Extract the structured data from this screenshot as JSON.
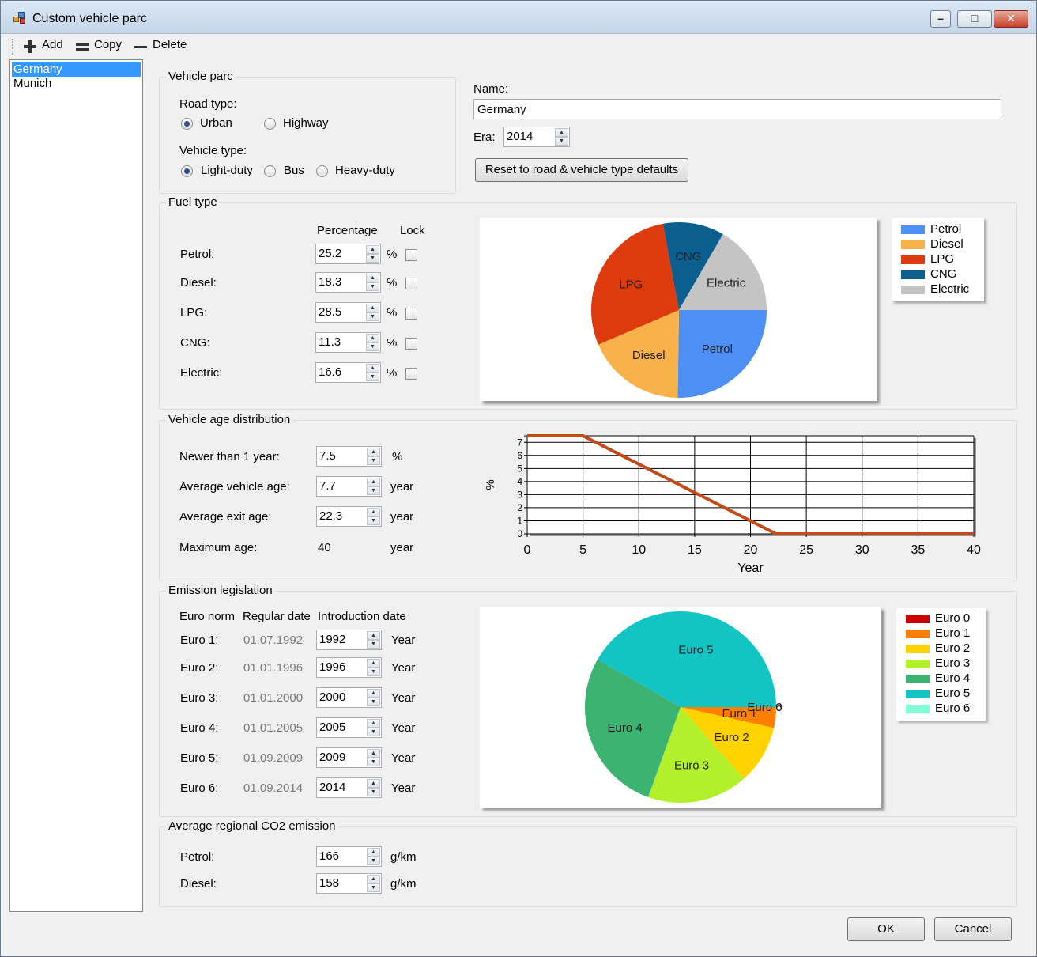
{
  "window": {
    "title": "Custom vehicle parc",
    "minimize": "–",
    "maximize": "□",
    "close": "✕"
  },
  "toolbar": {
    "add": "Add",
    "copy": "Copy",
    "delete": "Delete"
  },
  "parcs": [
    "Germany",
    "Munich"
  ],
  "vehicle_parc": {
    "title": "Vehicle parc",
    "road_type_label": "Road type:",
    "road_types": [
      "Urban",
      "Highway"
    ],
    "road_type_selected": "Urban",
    "vehicle_type_label": "Vehicle type:",
    "vehicle_types": [
      "Light-duty",
      "Bus",
      "Heavy-duty"
    ],
    "vehicle_type_selected": "Light-duty"
  },
  "name_section": {
    "name_label": "Name:",
    "name_value": "Germany",
    "era_label": "Era:",
    "era_value": "2014",
    "reset_button": "Reset to road & vehicle type defaults"
  },
  "fuel_type": {
    "title": "Fuel type",
    "col_percentage": "Percentage",
    "col_lock": "Lock",
    "unit": "%",
    "rows": [
      {
        "label": "Petrol:",
        "value": "25.2"
      },
      {
        "label": "Diesel:",
        "value": "18.3"
      },
      {
        "label": "LPG:",
        "value": "28.5"
      },
      {
        "label": "CNG:",
        "value": "11.3"
      },
      {
        "label": "Electric:",
        "value": "16.6"
      }
    ]
  },
  "age_distribution": {
    "title": "Vehicle age distribution",
    "rows": [
      {
        "label": "Newer than 1 year:",
        "value": "7.5",
        "unit": "%"
      },
      {
        "label": "Average vehicle age:",
        "value": "7.7",
        "unit": "year"
      },
      {
        "label": "Average exit age:",
        "value": "22.3",
        "unit": "year"
      }
    ],
    "max_label": "Maximum age:",
    "max_value": "40",
    "max_unit": "year"
  },
  "emission": {
    "title": "Emission legislation",
    "col_norm": "Euro norm",
    "col_regular": "Regular date",
    "col_intro": "Introduction date",
    "unit": "Year",
    "rows": [
      {
        "norm": "Euro 1:",
        "regular": "01.07.1992",
        "intro": "1992"
      },
      {
        "norm": "Euro 2:",
        "regular": "01.01.1996",
        "intro": "1996"
      },
      {
        "norm": "Euro 3:",
        "regular": "01.01.2000",
        "intro": "2000"
      },
      {
        "norm": "Euro 4:",
        "regular": "01.01.2005",
        "intro": "2005"
      },
      {
        "norm": "Euro 5:",
        "regular": "01.09.2009",
        "intro": "2009"
      },
      {
        "norm": "Euro 6:",
        "regular": "01.09.2014",
        "intro": "2014"
      }
    ]
  },
  "co2": {
    "title": "Average regional CO2 emission",
    "unit": "g/km",
    "rows": [
      {
        "label": "Petrol:",
        "value": "166"
      },
      {
        "label": "Diesel:",
        "value": "158"
      }
    ]
  },
  "dialog": {
    "ok": "OK",
    "cancel": "Cancel"
  },
  "chart_data": [
    {
      "type": "pie",
      "categories": [
        "Petrol",
        "Diesel",
        "LPG",
        "CNG",
        "Electric"
      ],
      "values": [
        25.2,
        18.3,
        28.5,
        11.3,
        16.6
      ],
      "colors": [
        "#4d8ff2",
        "#f9b24a",
        "#dd3a0d",
        "#0b5f8e",
        "#c4c4c4"
      ],
      "start": "3 o'clock, clockwise",
      "legend": "right"
    },
    {
      "type": "line",
      "x": [
        0,
        5,
        22.3,
        40
      ],
      "y": [
        7.5,
        7.5,
        0,
        0
      ],
      "xlabel": "Year",
      "ylabel": "%",
      "xlim": [
        0,
        40
      ],
      "ylim": [
        0,
        7.5
      ],
      "xticks": [
        0,
        5,
        10,
        15,
        20,
        25,
        30,
        35,
        40
      ],
      "yticks": [
        0,
        1,
        2,
        3,
        4,
        5,
        6,
        7
      ],
      "line_color": "#c44a1a",
      "grid": true
    },
    {
      "type": "pie",
      "categories": [
        "Euro 0",
        "Euro 1",
        "Euro 2",
        "Euro 3",
        "Euro 4",
        "Euro 5",
        "Euro 6"
      ],
      "values": [
        0,
        3.5,
        10,
        17,
        27.8,
        41.7,
        0
      ],
      "colors": [
        "#cc0000",
        "#ff7f00",
        "#ffd300",
        "#b2f02c",
        "#3cb371",
        "#12c4c4",
        "#7fffd4"
      ],
      "start": "3 o'clock, clockwise",
      "legend": "right"
    }
  ]
}
